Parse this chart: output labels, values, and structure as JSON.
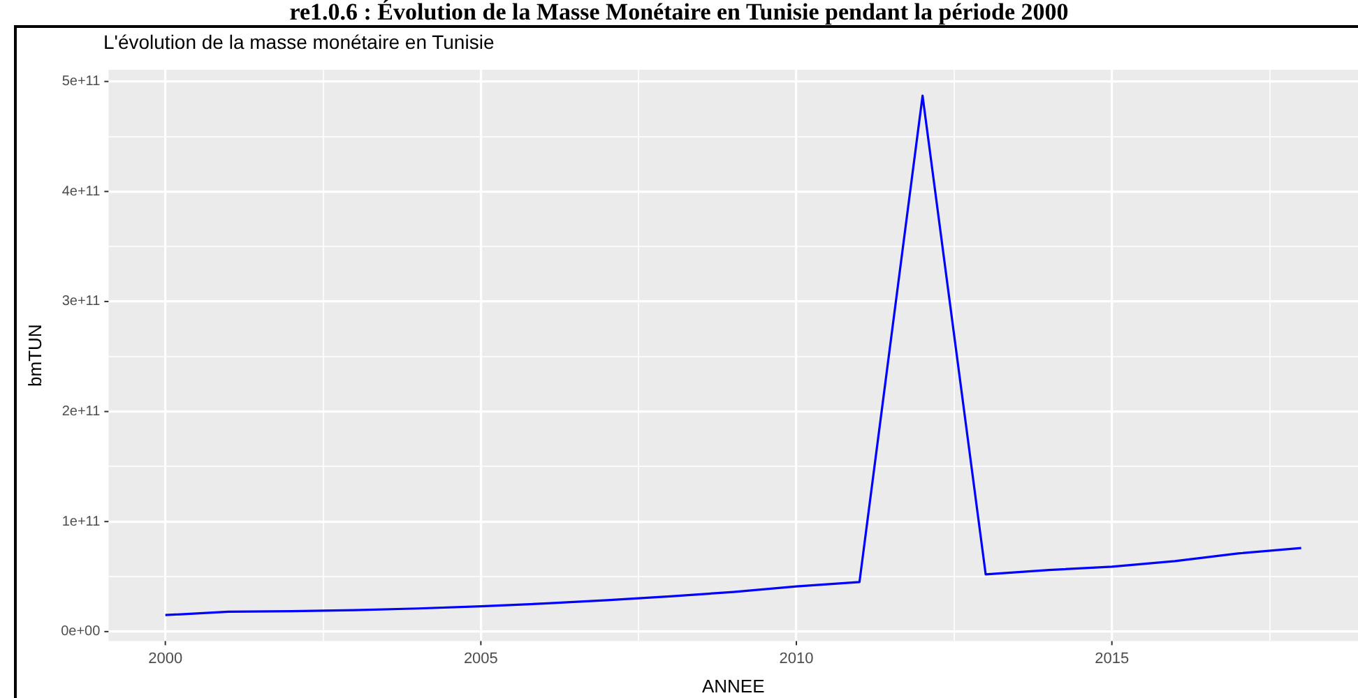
{
  "chart_data": {
    "type": "line",
    "title": "L'évolution de la masse monétaire en Tunisie",
    "annotations": [
      "re1.0.6 : Évolution de la Masse Monétaire en Tunisie pendant la période 2000"
    ],
    "xlabel": "ANNEE",
    "ylabel": "bmTUN",
    "x": [
      2000,
      2001,
      2002,
      2003,
      2004,
      2005,
      2006,
      2007,
      2008,
      2009,
      2010,
      2011,
      2012,
      2013,
      2014,
      2015,
      2016,
      2017,
      2018
    ],
    "series": [
      {
        "color": "#0000ff",
        "values": [
          15000000000.0,
          18000000000.0,
          18500000000.0,
          19500000000.0,
          21000000000.0,
          23000000000.0,
          25500000000.0,
          28500000000.0,
          32000000000.0,
          36000000000.0,
          41000000000.0,
          45000000000.0,
          487000000000.0,
          52000000000.0,
          56000000000.0,
          59000000000.0,
          64000000000.0,
          71000000000.0,
          76000000000.0
        ]
      }
    ],
    "xlim": [
      1999.1,
      2018.9
    ],
    "xticks": [
      2000,
      {
        "value": 2002.5,
        "label": null
      },
      2005,
      {
        "value": 2007.5,
        "label": null
      },
      2010,
      {
        "value": 2012.5,
        "label": null
      },
      2015,
      {
        "value": 2017.5,
        "label": null
      }
    ],
    "ylim": [
      -8600000000.0,
      510600000000.0
    ],
    "yticks": [
      {
        "value": 0,
        "label": "0e+00"
      },
      {
        "value": 50000000000.0,
        "label": null
      },
      {
        "value": 100000000000.0,
        "label": "1e+11"
      },
      {
        "value": 150000000000.0,
        "label": null
      },
      {
        "value": 200000000000.0,
        "label": "2e+11"
      },
      {
        "value": 250000000000.0,
        "label": null
      },
      {
        "value": 300000000000.0,
        "label": "3e+11"
      },
      {
        "value": 350000000000.0,
        "label": null
      },
      {
        "value": 400000000000.0,
        "label": "4e+11"
      },
      {
        "value": 450000000000.0,
        "label": null
      },
      {
        "value": 500000000000.0,
        "label": "5e+11"
      }
    ],
    "grid": true,
    "marker": "none",
    "line_style": "solid",
    "legend": false
  }
}
